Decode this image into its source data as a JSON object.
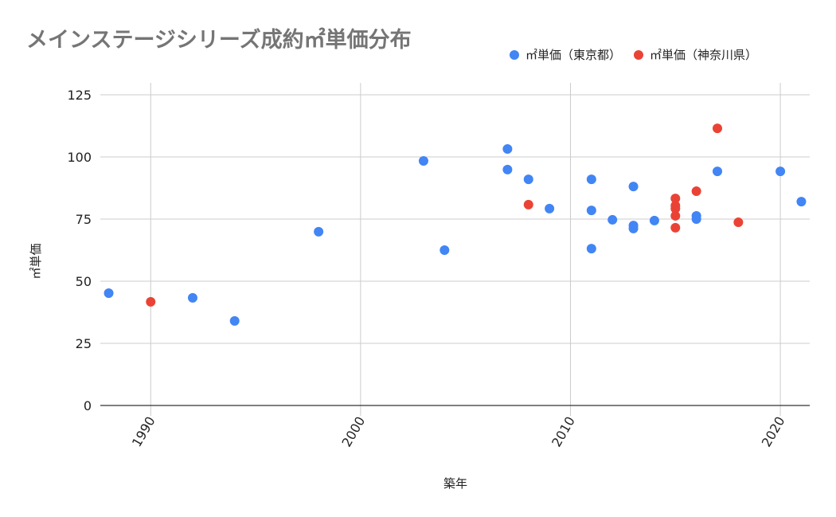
{
  "chart_data": {
    "type": "scatter",
    "title": "メインステージシリーズ成約㎡単価分布",
    "xlabel": "築年",
    "ylabel": "㎡単価",
    "xlim": [
      1987.6,
      2021.4
    ],
    "ylim": [
      0,
      125
    ],
    "x_ticks": [
      1990,
      2000,
      2010,
      2020
    ],
    "y_ticks": [
      0,
      25,
      50,
      75,
      100,
      125
    ],
    "grid": true,
    "legend_position": "top-right",
    "series": [
      {
        "name": "㎡単価（東京都）",
        "color": "#4285F4",
        "points": [
          [
            1988,
            45.2
          ],
          [
            1992,
            43.3
          ],
          [
            1994,
            34.0
          ],
          [
            1998,
            69.9
          ],
          [
            2003,
            98.4
          ],
          [
            2004,
            62.5
          ],
          [
            2007,
            103.2
          ],
          [
            2007,
            94.9
          ],
          [
            2008,
            91.0
          ],
          [
            2009,
            79.2
          ],
          [
            2011,
            91.0
          ],
          [
            2011,
            78.5
          ],
          [
            2011,
            63.1
          ],
          [
            2012,
            74.7
          ],
          [
            2013,
            88.1
          ],
          [
            2013,
            72.4
          ],
          [
            2013,
            71.2
          ],
          [
            2014,
            74.4
          ],
          [
            2016,
            76.3
          ],
          [
            2016,
            75.0
          ],
          [
            2017,
            94.2
          ],
          [
            2020,
            94.2
          ],
          [
            2021,
            82.0
          ]
        ]
      },
      {
        "name": "㎡単価（神奈川県）",
        "color": "#EA4335",
        "points": [
          [
            1990,
            41.7
          ],
          [
            2008,
            80.8
          ],
          [
            2015,
            83.3
          ],
          [
            2015,
            80.4
          ],
          [
            2015,
            79.2
          ],
          [
            2015,
            76.3
          ],
          [
            2015,
            71.5
          ],
          [
            2016,
            86.2
          ],
          [
            2017,
            111.5
          ],
          [
            2018,
            73.7
          ]
        ]
      }
    ]
  },
  "colors": {
    "title": "#757575",
    "grid": "#cccccc",
    "baseline": "#333333"
  }
}
